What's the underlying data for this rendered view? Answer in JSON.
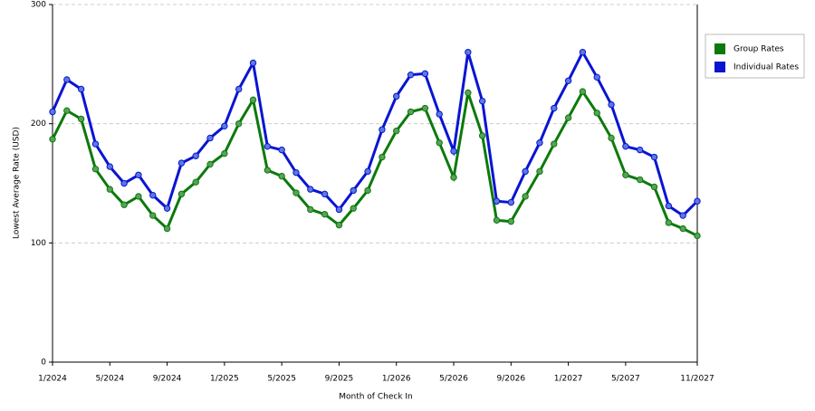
{
  "chart_data": {
    "type": "line",
    "x_label": "Month of Check In",
    "y_label": "Lowest Average Rate (USD)",
    "categories": [
      "1/2024",
      null,
      null,
      null,
      "5/2024",
      null,
      null,
      null,
      "9/2024",
      null,
      null,
      null,
      "1/2025",
      null,
      null,
      null,
      "5/2025",
      null,
      null,
      null,
      "9/2025",
      null,
      null,
      null,
      "1/2026",
      null,
      null,
      null,
      "5/2026",
      null,
      null,
      null,
      "9/2026",
      null,
      null,
      null,
      "1/2027",
      null,
      null,
      null,
      "5/2027",
      null,
      null,
      null,
      null,
      "11/2027"
    ],
    "series": [
      {
        "name": "Group Rates",
        "color": "#0b7a0b",
        "marker": "#5aa05a",
        "values": [
          187,
          211,
          204,
          162,
          145,
          132,
          139,
          123,
          112,
          141,
          151,
          166,
          175,
          200,
          220,
          161,
          156,
          142,
          128,
          124,
          115,
          129,
          144,
          172,
          194,
          210,
          213,
          184,
          155,
          226,
          190,
          119,
          118,
          139,
          160,
          183,
          205,
          227,
          209,
          188,
          157,
          153,
          147,
          117,
          112,
          106
        ]
      },
      {
        "name": "Individual Rates",
        "color": "#0a14d2",
        "marker": "#5a7ae0",
        "values": [
          210,
          237,
          229,
          183,
          164,
          150,
          157,
          140,
          129,
          167,
          173,
          188,
          198,
          229,
          251,
          181,
          178,
          159,
          145,
          141,
          128,
          144,
          160,
          195,
          223,
          241,
          242,
          208,
          177,
          260,
          219,
          135,
          134,
          160,
          184,
          213,
          236,
          260,
          239,
          216,
          181,
          178,
          172,
          131,
          123,
          135
        ]
      }
    ],
    "ylim": [
      0,
      300
    ],
    "yticks": [
      0,
      100,
      200,
      300
    ],
    "grid": true
  }
}
